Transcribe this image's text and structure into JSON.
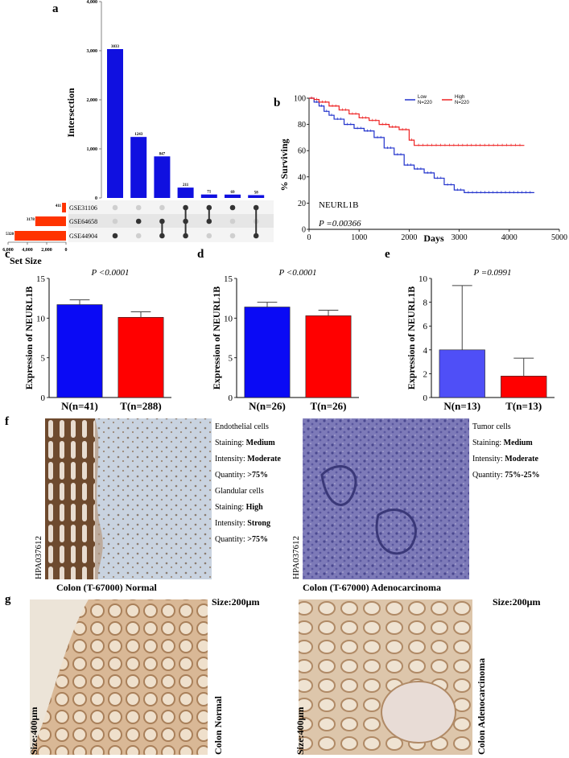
{
  "figure": {
    "letters": {
      "a": "a",
      "b": "b",
      "c": "c",
      "d": "d",
      "e": "e",
      "f": "f",
      "g": "g"
    }
  },
  "upset": {
    "ylabel": "Intersection",
    "yticks": [
      "0",
      "1,000",
      "2,000",
      "3,000",
      "4,000"
    ],
    "bars": [
      3033,
      1243,
      847,
      211,
      71,
      69,
      58
    ],
    "bar_labels": [
      "3033",
      "1243",
      "847",
      "211",
      "71",
      "69",
      "58"
    ],
    "sets": [
      {
        "name": "GSE31106",
        "size": 411,
        "label": "411"
      },
      {
        "name": "GSE64658",
        "size": 3178,
        "label": "3178"
      },
      {
        "name": "GSE44904",
        "size": 5320,
        "label": "5320"
      }
    ],
    "set_size_label": "Set Size",
    "set_size_ticks": [
      "6,000",
      "4,000",
      "2,000",
      "0"
    ],
    "matrix": [
      [
        0,
        0,
        1
      ],
      [
        0,
        1,
        0
      ],
      [
        0,
        1,
        1
      ],
      [
        1,
        1,
        1
      ],
      [
        1,
        1,
        0
      ],
      [
        1,
        0,
        0
      ],
      [
        1,
        0,
        1
      ]
    ],
    "ymax": 4000,
    "bar_color": "#1010e0",
    "set_color": "#ff3300"
  },
  "chart_data": [
    {
      "type": "line",
      "panel": "b",
      "title": "NEURL1B",
      "pvalue": "P =0.00366",
      "xlabel": "Days",
      "ylabel": "% Surviving",
      "xlim": [
        0,
        5000
      ],
      "ylim": [
        0,
        100
      ],
      "xticks": [
        "0",
        "1000",
        "2000",
        "3000",
        "4000",
        "5000"
      ],
      "yticks": [
        "0",
        "20",
        "40",
        "60",
        "80",
        "100"
      ],
      "series": [
        {
          "name": "Low",
          "n": "N=220",
          "color": "#2233cc",
          "x": [
            0,
            100,
            200,
            300,
            400,
            500,
            700,
            900,
            1100,
            1300,
            1500,
            1700,
            1900,
            2100,
            2300,
            2500,
            2700,
            2900,
            3100,
            4500
          ],
          "y": [
            100,
            97,
            94,
            90,
            87,
            84,
            80,
            77,
            75,
            70,
            62,
            57,
            49,
            46,
            43,
            39,
            34,
            30,
            28,
            28
          ]
        },
        {
          "name": "High",
          "n": "N=220",
          "color": "#ee2222",
          "x": [
            0,
            100,
            200,
            400,
            600,
            800,
            1000,
            1200,
            1400,
            1600,
            1800,
            2000,
            2100,
            4300
          ],
          "y": [
            100,
            99,
            97,
            94,
            91,
            88,
            85,
            83,
            80,
            78,
            76,
            68,
            64,
            64
          ]
        }
      ]
    },
    {
      "type": "bar",
      "panel": "c",
      "pvalue": "P <0.0001",
      "ylabel": "Expression of NEURL1B",
      "categories": [
        "N(n=41)",
        "T(n=288)"
      ],
      "values": [
        11.7,
        10.1
      ],
      "errors": [
        0.6,
        0.7
      ],
      "ylim": [
        0,
        15
      ],
      "yticks": [
        "0",
        "5",
        "10",
        "15"
      ],
      "colors": [
        "#0a0af5",
        "#ff0000"
      ]
    },
    {
      "type": "bar",
      "panel": "d",
      "pvalue": "P <0.0001",
      "ylabel": "Expression of NEURL1B",
      "categories": [
        "N(n=26)",
        "T(n=26)"
      ],
      "values": [
        11.4,
        10.3
      ],
      "errors": [
        0.6,
        0.7
      ],
      "ylim": [
        0,
        15
      ],
      "yticks": [
        "0",
        "5",
        "10",
        "15"
      ],
      "colors": [
        "#0a0af5",
        "#ff0000"
      ]
    },
    {
      "type": "bar",
      "panel": "e",
      "pvalue": "P =0.0991",
      "ylabel": "Expression of NEURL1B",
      "categories": [
        "N(n=13)",
        "T(n=13)"
      ],
      "values": [
        4.0,
        1.8
      ],
      "errors": [
        5.4,
        1.5
      ],
      "ylim": [
        0,
        10
      ],
      "yticks": [
        "0",
        "2",
        "4",
        "6",
        "8",
        "10"
      ],
      "colors": [
        "#4f4ff7",
        "#ff0000"
      ]
    }
  ],
  "ihc": {
    "left": {
      "antibody": "HPA037612",
      "caption": "Colon (T-67000) Normal",
      "lines": [
        {
          "k": "Endothelial cells",
          "v": ""
        },
        {
          "k": "Staining: ",
          "v": "Medium"
        },
        {
          "k": "Intensity: ",
          "v": "Moderate"
        },
        {
          "k": "Quantity: ",
          "v": ">75%"
        },
        {
          "k": "Glandular cells",
          "v": ""
        },
        {
          "k": "Staining: ",
          "v": "High"
        },
        {
          "k": "Intensity: ",
          "v": "Strong"
        },
        {
          "k": "Quantity: ",
          "v": ">75%"
        }
      ]
    },
    "right": {
      "antibody": "HPA037612",
      "caption": "Colon (T-67000) Adenocarcinoma",
      "lines": [
        {
          "k": "Tumor cells",
          "v": ""
        },
        {
          "k": "Staining: ",
          "v": "Medium"
        },
        {
          "k": "Intensity: ",
          "v": "Moderate"
        },
        {
          "k": "Quantity: ",
          "v": "75%-25%"
        }
      ]
    }
  },
  "panel_g": {
    "left": {
      "size_top": "Size:200μm",
      "size_side": "Size:400μm",
      "label": "Colon Normal"
    },
    "right": {
      "size_top": "Size:200μm",
      "size_side": "Size:400μm",
      "label": "Colon Adenocarcinoma"
    }
  }
}
